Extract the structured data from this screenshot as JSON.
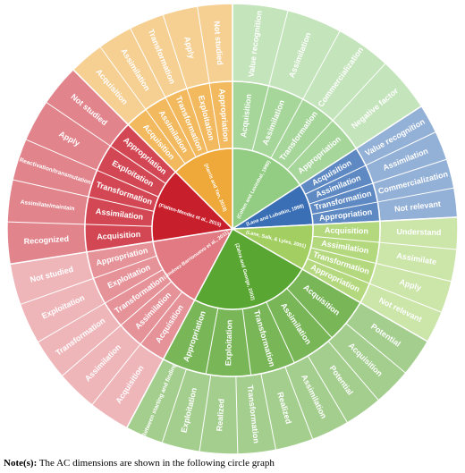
{
  "sectors": [
    {
      "reference": "(Cohen and Levinthal, 1990)",
      "color": "#93cd84",
      "dimensions": [
        "Acquisition",
        "Assimilation",
        "Transformation",
        "Appropriation"
      ],
      "labels": [
        "Value recognition",
        "Assimilation",
        "Commercialization",
        "Negative factor"
      ]
    },
    {
      "reference": "(Lane and Lubatkin, 1998)",
      "color": "#3a6fb5",
      "dimensions": [
        "Acquisition",
        "Assimilation",
        "Transformation",
        "Appropriation"
      ],
      "labels": [
        "Value recognition",
        "Assimilation",
        "Commercialization",
        "Not relevant"
      ]
    },
    {
      "reference": "(Lane, Salk, & Lyles, 2001)",
      "color": "#a3cf62",
      "dimensions": [
        "Acquisition",
        "Assimilation",
        "Transformation",
        "Appropriation"
      ],
      "labels": [
        "Understand",
        "Assimilate",
        "Apply",
        "Not relevant"
      ]
    },
    {
      "reference": "(Zahra and George, 2002)",
      "color": "#5aa632",
      "dimensions": [
        "Acquisition",
        "Assimilation",
        "Transformation",
        "Exploitation",
        "Appropriation"
      ],
      "labels": [
        "Potential",
        "Acquisition",
        "Potential",
        "Assimilation",
        "Realized",
        "Transformation",
        "Realized",
        "Exploitation",
        "Between starting and finding"
      ]
    },
    {
      "reference": "(Jiménez-Barrionuevo et al., 2011)",
      "color": "#e17a82",
      "dimensions": [
        "Acquisition",
        "Assimilation",
        "Transformation",
        "Exploitation",
        "Appropriation"
      ],
      "labels": [
        "Acquisition",
        "Assimilation",
        "Transformation",
        "Exploitation",
        "Not studied"
      ]
    },
    {
      "reference": "(Flatten-Mendez et al., 2015)",
      "color": "#c81f2d",
      "dimensions": [
        "Acquisition",
        "Assimilation",
        "Transformation",
        "Exploitation",
        "Appropriation"
      ],
      "labels": [
        "Recognized",
        "Assimilate/maintain",
        "Reactivation/transmutation",
        "Apply",
        "Not studied"
      ]
    },
    {
      "reference": "(Harris and Yan, 2019)",
      "color": "#efa93a",
      "dimensions": [
        "Acquisition",
        "Assimilation",
        "Transformation",
        "Exploitation",
        "Appropriation"
      ],
      "labels": [
        "Acquisition",
        "Assimilation",
        "Transformation",
        "Apply",
        "Not studied"
      ]
    }
  ],
  "note": {
    "label": "Note(s):",
    "text": "The AC dimensions are shown in the following circle graph"
  }
}
